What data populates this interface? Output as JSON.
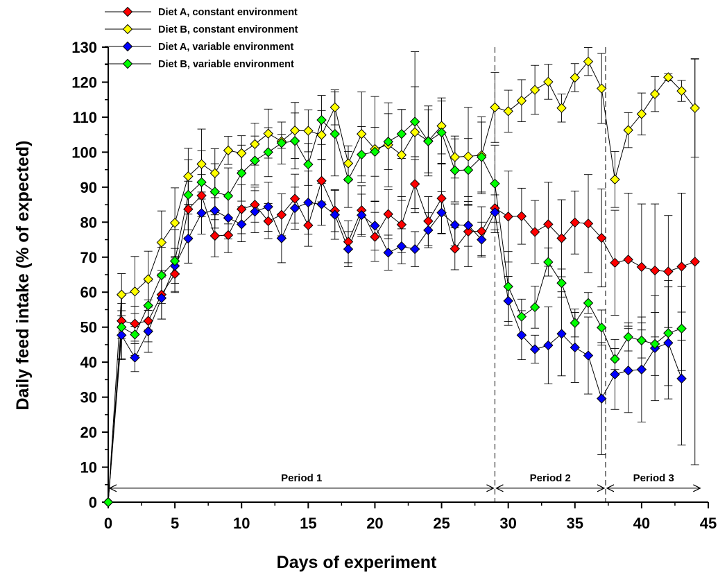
{
  "chart_data": {
    "type": "line",
    "title": "",
    "xlabel": "Days of experiment",
    "ylabel": "Daily feed intake (% of expected)",
    "xlim": [
      0,
      45
    ],
    "ylim": [
      0,
      130
    ],
    "x_ticks": [
      0,
      5,
      10,
      15,
      20,
      25,
      30,
      35,
      40,
      45
    ],
    "y_ticks": [
      0,
      10,
      20,
      30,
      40,
      50,
      60,
      70,
      80,
      90,
      100,
      110,
      120,
      130
    ],
    "grid": false,
    "legend_position": "top-left",
    "period_dividers": [
      29,
      37.3
    ],
    "periods": [
      {
        "label": "Period 1",
        "from": 0,
        "to": 29,
        "y": 4
      },
      {
        "label": "Period 2",
        "from": 29,
        "to": 37.3,
        "y": 4
      },
      {
        "label": "Period 3",
        "from": 37.3,
        "to": 44.5,
        "y": 4
      }
    ],
    "series": [
      {
        "name": "Diet A, constant environment",
        "color": "#ff0000",
        "points": [
          [
            0,
            0
          ],
          [
            1,
            51.8
          ],
          [
            2,
            51
          ],
          [
            3,
            51.8
          ],
          [
            4,
            59.3
          ],
          [
            5,
            65.2
          ],
          [
            6,
            83.7
          ],
          [
            7,
            87.6
          ],
          [
            8,
            76.1
          ],
          [
            9,
            76.3
          ],
          [
            10,
            83.7
          ],
          [
            11,
            85
          ],
          [
            12,
            80.3
          ],
          [
            13,
            82.1
          ],
          [
            14,
            86.7
          ],
          [
            15,
            79.1
          ],
          [
            16,
            91.8
          ],
          [
            17,
            83.3
          ],
          [
            18,
            74.4
          ],
          [
            19,
            83.4
          ],
          [
            20,
            75.8
          ],
          [
            21,
            82.3
          ],
          [
            22,
            79.3
          ],
          [
            23,
            90.9
          ],
          [
            24,
            80.3
          ],
          [
            25,
            86.8
          ],
          [
            26,
            72.4
          ],
          [
            27,
            77.3
          ],
          [
            28,
            77.4
          ],
          [
            29,
            84
          ],
          [
            30,
            81.6
          ],
          [
            31,
            81.7
          ],
          [
            32,
            77.2
          ],
          [
            33,
            79.4
          ],
          [
            34,
            75.4
          ],
          [
            35,
            79.9
          ],
          [
            36,
            79.6
          ],
          [
            37,
            75.5
          ],
          [
            38,
            68.4
          ],
          [
            39,
            69.3
          ],
          [
            40,
            67.2
          ],
          [
            41,
            66.2
          ],
          [
            42,
            65.9
          ],
          [
            43,
            67.3
          ],
          [
            44,
            68.7
          ]
        ],
        "errors": [
          0,
          5,
          5,
          6,
          7,
          5,
          8,
          6,
          6,
          5,
          7,
          5,
          5,
          6,
          7,
          6,
          6,
          6,
          6,
          7,
          7,
          7,
          8,
          7,
          7,
          10,
          6,
          10,
          7,
          7,
          13,
          8,
          9,
          12,
          11,
          9,
          14,
          14,
          15,
          19,
          18,
          19,
          16,
          21,
          58
        ]
      },
      {
        "name": "Diet B, constant environment",
        "color": "#ffff00",
        "points": [
          [
            0,
            0
          ],
          [
            1,
            59.3
          ],
          [
            2,
            60.2
          ],
          [
            3,
            63.7
          ],
          [
            4,
            74.2
          ],
          [
            5,
            79.8
          ],
          [
            6,
            93.1
          ],
          [
            7,
            96.6
          ],
          [
            8,
            94
          ],
          [
            9,
            100.5
          ],
          [
            10,
            99.7
          ],
          [
            11,
            102.3
          ],
          [
            12,
            105.3
          ],
          [
            13,
            103.1
          ],
          [
            14,
            106.2
          ],
          [
            15,
            106.1
          ],
          [
            16,
            104.9
          ],
          [
            17,
            112.8
          ],
          [
            18,
            96.8
          ],
          [
            19,
            105.2
          ],
          [
            20,
            100.9
          ],
          [
            21,
            102.1
          ],
          [
            22,
            99.2
          ],
          [
            23,
            105.7
          ],
          [
            24,
            103.2
          ],
          [
            25,
            107.5
          ],
          [
            26,
            98.6
          ],
          [
            27,
            98.8
          ],
          [
            28,
            99.1
          ],
          [
            29,
            112.8
          ],
          [
            30,
            111.7
          ],
          [
            31,
            114.7
          ],
          [
            32,
            117.8
          ],
          [
            33,
            120.1
          ],
          [
            34,
            112.6
          ],
          [
            35,
            121.3
          ],
          [
            36,
            125.9
          ],
          [
            37,
            118.2
          ],
          [
            38,
            92.2
          ],
          [
            39,
            106.3
          ],
          [
            40,
            110.9
          ],
          [
            41,
            116.6
          ],
          [
            42,
            121.4
          ],
          [
            43,
            117.5
          ],
          [
            44,
            112.6
          ]
        ],
        "errors": [
          0,
          6,
          10,
          8,
          9,
          10,
          8,
          10,
          7,
          4,
          5,
          6,
          7,
          2,
          8,
          6,
          7,
          5,
          5,
          12,
          15,
          12,
          13,
          23,
          10,
          8,
          6,
          14,
          11,
          10,
          6,
          6,
          7,
          5,
          4,
          4,
          4,
          10,
          8,
          5,
          6,
          5,
          1,
          3,
          14
        ]
      },
      {
        "name": "Diet A, variable environment",
        "color": "#0000ff",
        "points": [
          [
            0,
            0
          ],
          [
            1,
            47.7
          ],
          [
            2,
            41.3
          ],
          [
            3,
            48.8
          ],
          [
            4,
            58.3
          ],
          [
            5,
            67.5
          ],
          [
            6,
            75.3
          ],
          [
            7,
            82.6
          ],
          [
            8,
            83.3
          ],
          [
            9,
            81.2
          ],
          [
            10,
            79.4
          ],
          [
            11,
            83
          ],
          [
            12,
            84.4
          ],
          [
            13,
            75.4
          ],
          [
            14,
            84
          ],
          [
            15,
            85.6
          ],
          [
            16,
            85.1
          ],
          [
            17,
            82.1
          ],
          [
            18,
            72.3
          ],
          [
            19,
            82
          ],
          [
            20,
            79
          ],
          [
            21,
            71.3
          ],
          [
            22,
            73.1
          ],
          [
            23,
            72.3
          ],
          [
            24,
            77.7
          ],
          [
            25,
            82.7
          ],
          [
            26,
            79.2
          ],
          [
            27,
            79.1
          ],
          [
            28,
            75
          ],
          [
            29,
            82.8
          ],
          [
            30,
            57.5
          ],
          [
            31,
            47.7
          ],
          [
            32,
            43.7
          ],
          [
            33,
            44.8
          ],
          [
            34,
            48.1
          ],
          [
            35,
            44.2
          ],
          [
            36,
            41.9
          ],
          [
            37,
            29.6
          ],
          [
            38,
            36.5
          ],
          [
            39,
            37.6
          ],
          [
            40,
            37.9
          ],
          [
            41,
            44
          ],
          [
            42,
            45.5
          ],
          [
            43,
            35.3
          ]
        ],
        "errors": [
          0,
          7,
          4,
          6,
          6,
          5,
          7,
          6,
          5,
          6,
          5,
          6,
          7,
          7,
          6,
          9,
          6,
          7,
          5,
          6,
          7,
          5,
          5,
          5,
          5,
          6,
          6,
          6,
          5,
          5,
          7,
          7,
          4,
          11,
          12,
          10,
          11,
          16,
          10,
          12,
          15,
          15,
          16,
          19
        ]
      },
      {
        "name": "Diet B, variable environment",
        "color": "#00ff00",
        "points": [
          [
            0,
            0
          ],
          [
            1,
            50
          ],
          [
            2,
            47.9
          ],
          [
            3,
            56.2
          ],
          [
            4,
            64.8
          ],
          [
            5,
            68.9
          ],
          [
            6,
            87.8
          ],
          [
            7,
            91.4
          ],
          [
            8,
            88.7
          ],
          [
            9,
            87.5
          ],
          [
            10,
            94
          ],
          [
            11,
            97.6
          ],
          [
            12,
            100
          ],
          [
            13,
            102.6
          ],
          [
            14,
            103.2
          ],
          [
            15,
            96.5
          ],
          [
            16,
            109.2
          ],
          [
            17,
            105.2
          ],
          [
            18,
            92.2
          ],
          [
            19,
            99.3
          ],
          [
            20,
            100.1
          ],
          [
            21,
            103
          ],
          [
            22,
            105.2
          ],
          [
            23,
            108.7
          ],
          [
            24,
            103.1
          ],
          [
            25,
            105.6
          ],
          [
            26,
            94.8
          ],
          [
            27,
            94.9
          ],
          [
            28,
            98.6
          ],
          [
            29,
            91
          ],
          [
            30,
            61.6
          ],
          [
            31,
            53
          ],
          [
            32,
            55.7
          ],
          [
            33,
            68.6
          ],
          [
            34,
            62.6
          ],
          [
            35,
            51.2
          ],
          [
            36,
            56.9
          ],
          [
            37,
            49.9
          ],
          [
            38,
            40.9
          ],
          [
            39,
            47.2
          ],
          [
            40,
            46.2
          ],
          [
            41,
            45.2
          ],
          [
            42,
            48.3
          ],
          [
            43,
            49.6
          ]
        ],
        "errors": [
          0,
          9,
          6,
          7,
          8,
          9,
          10,
          9,
          8,
          8,
          8,
          7,
          7,
          6,
          8,
          6,
          7,
          12,
          8,
          8,
          7,
          8,
          7,
          10,
          9,
          9,
          9,
          9,
          10,
          11,
          10,
          5,
          6,
          4,
          4,
          4,
          3,
          5,
          3,
          4,
          5,
          9,
          15,
          12
        ]
      }
    ]
  }
}
